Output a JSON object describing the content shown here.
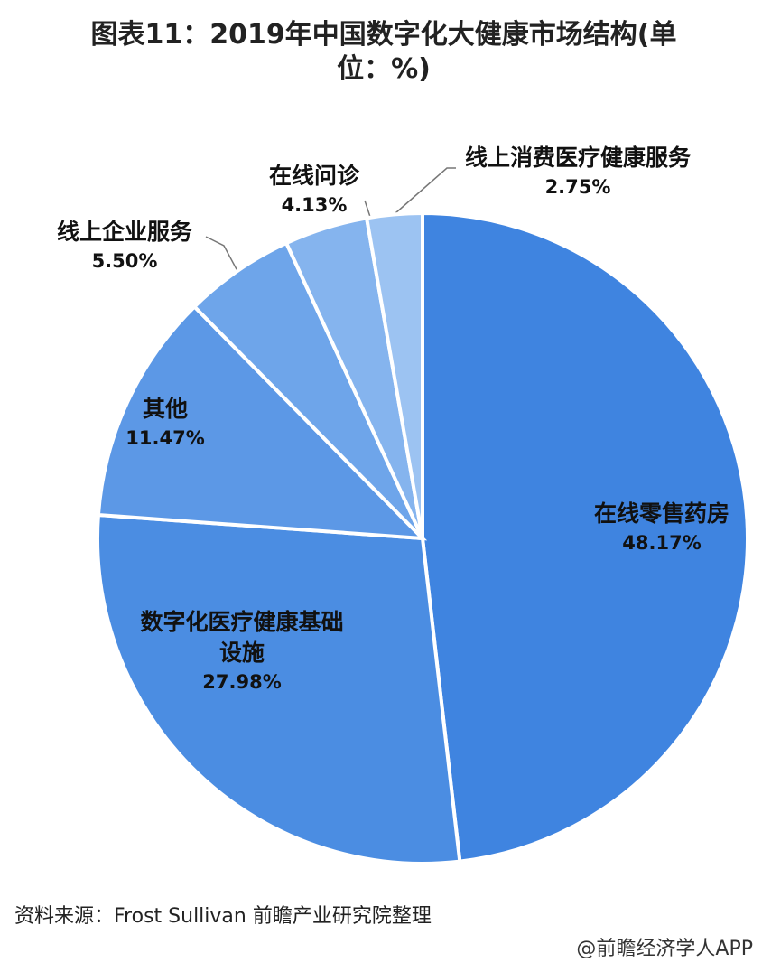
{
  "chart_data": {
    "type": "pie",
    "title": "图表11：2019年中国数字化大健康市场结构(单位：%)",
    "categories": [
      "在线零售药房",
      "数字化医疗健康基础设施",
      "其他",
      "线上企业服务",
      "在线问诊",
      "线上消费医疗健康服务"
    ],
    "values": [
      48.17,
      27.98,
      11.47,
      5.5,
      4.13,
      2.75
    ],
    "value_labels": [
      "48.17%",
      "27.98%",
      "11.47%",
      "5.50%",
      "4.13%",
      "2.75%"
    ],
    "colors": [
      "#3f84e0",
      "#4b8de2",
      "#5c98e6",
      "#6ea5ea",
      "#85b4ee",
      "#9cc3f2"
    ],
    "source": "资料来源：Frost Sullivan 前瞻产业研究院整理",
    "watermark": "@前瞻经济学人APP"
  }
}
